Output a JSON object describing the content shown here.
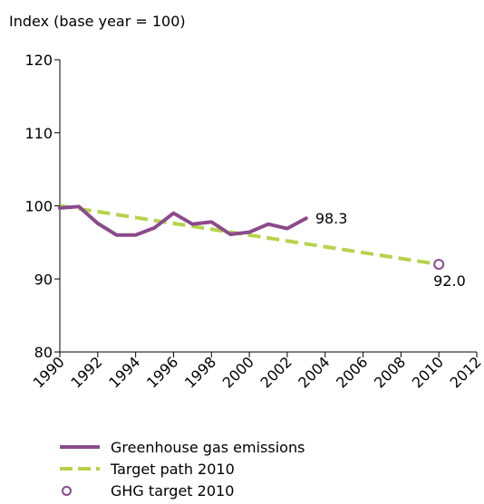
{
  "chart_data": {
    "type": "line",
    "ylabel": "Index (base year = 100)",
    "ylim": [
      80,
      120
    ],
    "y_ticks": [
      "80",
      "90",
      "100",
      "110",
      "120"
    ],
    "xlim": [
      1990,
      2012
    ],
    "x_ticks": [
      "1990",
      "1992",
      "1994",
      "1996",
      "1998",
      "2000",
      "2002",
      "2004",
      "2006",
      "2008",
      "2010",
      "2012"
    ],
    "grid": false,
    "series": [
      {
        "name": "Greenhouse gas emissions",
        "color": "#8b4a8c",
        "style": "solid",
        "x": [
          1990,
          1991,
          1992,
          1993,
          1994,
          1995,
          1996,
          1997,
          1998,
          1999,
          2000,
          2001,
          2002,
          2003
        ],
        "values": [
          99.7,
          99.9,
          97.6,
          96.0,
          96.0,
          97.0,
          99.0,
          97.5,
          97.8,
          96.1,
          96.4,
          97.5,
          96.9,
          98.3
        ],
        "end_label": "98.3"
      },
      {
        "name": "Target path 2010",
        "color": "#b6d34a",
        "style": "dashed",
        "x": [
          1990,
          2010
        ],
        "values": [
          100.0,
          92.0
        ]
      },
      {
        "name": "GHG target 2010",
        "color": "#8b4a8c",
        "style": "marker",
        "x": [
          2010
        ],
        "values": [
          92.0
        ],
        "point_label": "92.0"
      }
    ],
    "legend_position": "bottom-left"
  }
}
